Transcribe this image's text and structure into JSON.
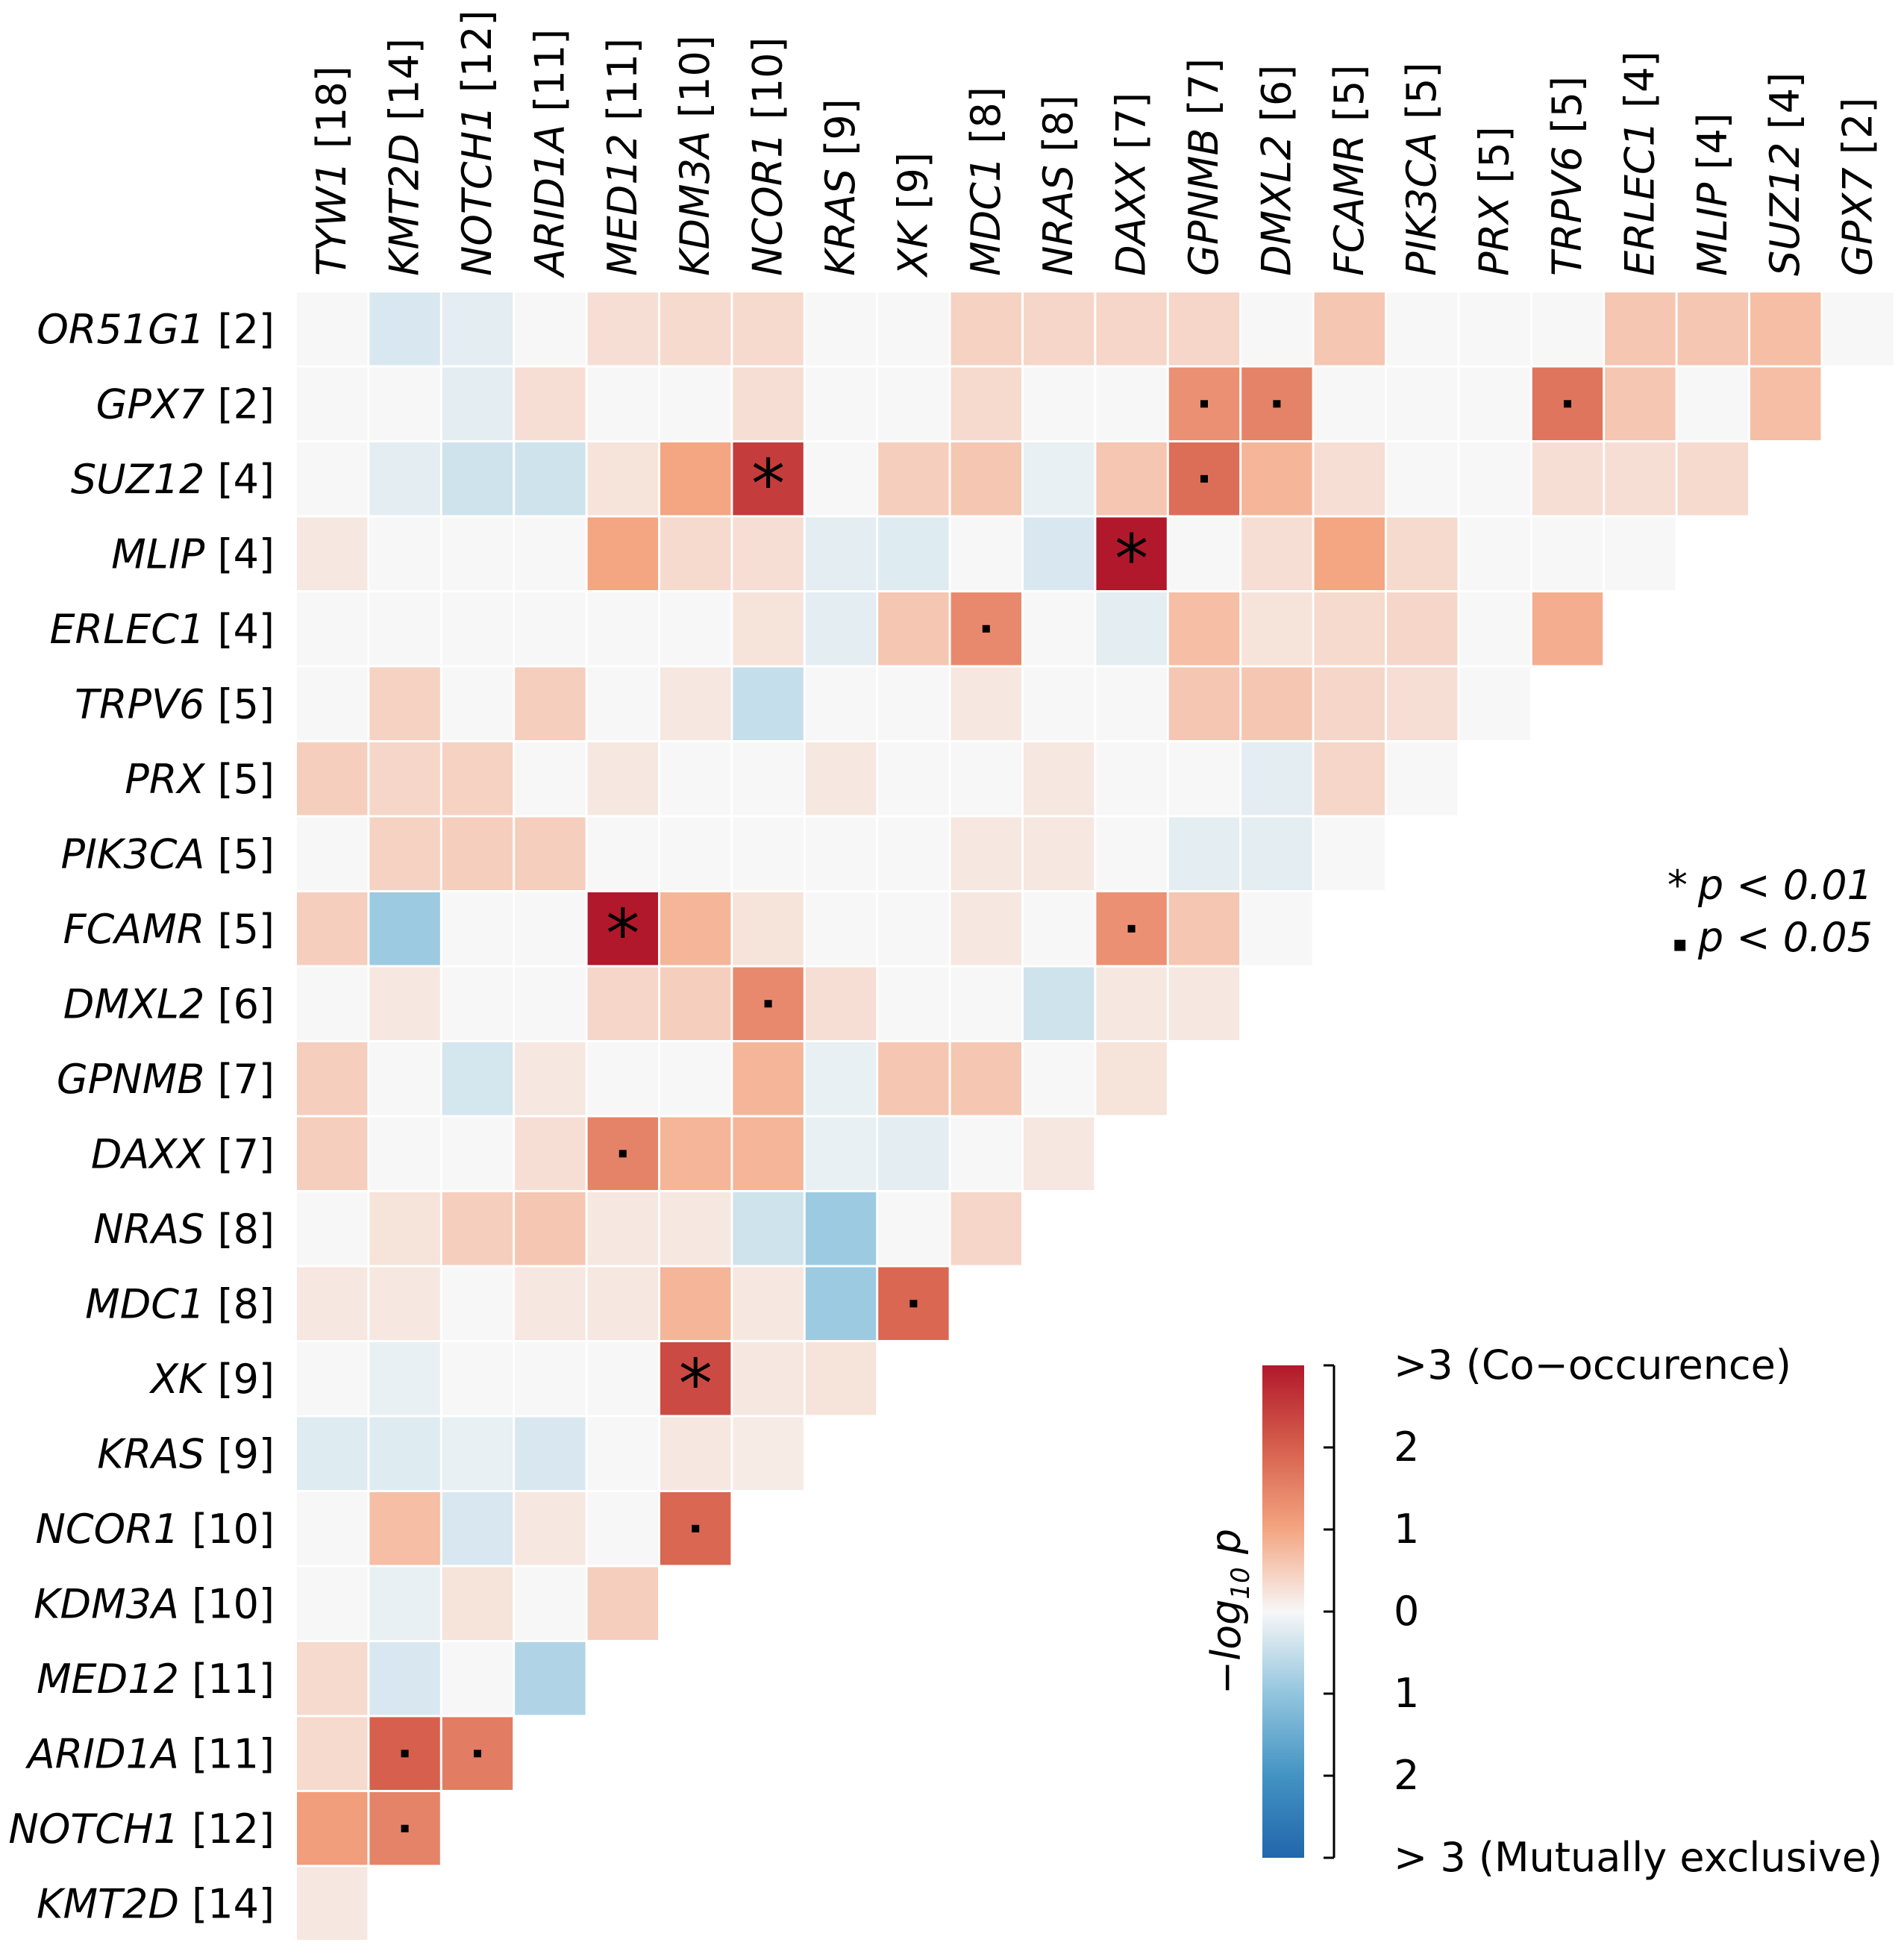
{
  "chart_data": {
    "type": "heatmap",
    "title": "",
    "genes_columns": [
      {
        "name": "TYW1",
        "count": "[18]"
      },
      {
        "name": "KMT2D",
        "count": "[14]"
      },
      {
        "name": "NOTCH1",
        "count": "[12]"
      },
      {
        "name": "ARID1A",
        "count": "[11]"
      },
      {
        "name": "MED12",
        "count": "[11]"
      },
      {
        "name": "KDM3A",
        "count": "[10]"
      },
      {
        "name": "NCOR1",
        "count": "[10]"
      },
      {
        "name": "KRAS",
        "count": "[9]"
      },
      {
        "name": "XK",
        "count": "[9]"
      },
      {
        "name": "MDC1",
        "count": "[8]"
      },
      {
        "name": "NRAS",
        "count": "[8]"
      },
      {
        "name": "DAXX",
        "count": "[7]"
      },
      {
        "name": "GPNMB",
        "count": "[7]"
      },
      {
        "name": "DMXL2",
        "count": "[6]"
      },
      {
        "name": "FCAMR",
        "count": "[5]"
      },
      {
        "name": "PIK3CA",
        "count": "[5]"
      },
      {
        "name": "PRX",
        "count": "[5]"
      },
      {
        "name": "TRPV6",
        "count": "[5]"
      },
      {
        "name": "ERLEC1",
        "count": "[4]"
      },
      {
        "name": "MLIP",
        "count": "[4]"
      },
      {
        "name": "SUZ12",
        "count": "[4]"
      },
      {
        "name": "GPX7",
        "count": "[2]"
      }
    ],
    "genes_rows": [
      {
        "name": "OR51G1",
        "count": "[2]"
      },
      {
        "name": "GPX7",
        "count": "[2]"
      },
      {
        "name": "SUZ12",
        "count": "[4]"
      },
      {
        "name": "MLIP",
        "count": "[4]"
      },
      {
        "name": "ERLEC1",
        "count": "[4]"
      },
      {
        "name": "TRPV6",
        "count": "[5]"
      },
      {
        "name": "PRX",
        "count": "[5]"
      },
      {
        "name": "PIK3CA",
        "count": "[5]"
      },
      {
        "name": "FCAMR",
        "count": "[5]"
      },
      {
        "name": "DMXL2",
        "count": "[6]"
      },
      {
        "name": "GPNMB",
        "count": "[7]"
      },
      {
        "name": "DAXX",
        "count": "[7]"
      },
      {
        "name": "NRAS",
        "count": "[8]"
      },
      {
        "name": "MDC1",
        "count": "[8]"
      },
      {
        "name": "XK",
        "count": "[9]"
      },
      {
        "name": "KRAS",
        "count": "[9]"
      },
      {
        "name": "NCOR1",
        "count": "[10]"
      },
      {
        "name": "KDM3A",
        "count": "[10]"
      },
      {
        "name": "MED12",
        "count": "[11]"
      },
      {
        "name": "ARID1A",
        "count": "[11]"
      },
      {
        "name": "NOTCH1",
        "count": "[12]"
      },
      {
        "name": "KMT2D",
        "count": "[14]"
      }
    ],
    "value_description": "signed -log10 p; positive = co-occurrence, negative = mutual exclusivity",
    "values": [
      [
        0,
        -0.3,
        -0.2,
        0,
        0.3,
        0.35,
        0.35,
        0,
        0,
        0.45,
        0.4,
        0.4,
        0.4,
        0,
        0.6,
        0,
        0,
        0,
        0.6,
        0.6,
        0.7,
        0
      ],
      [
        0,
        0,
        -0.2,
        0.3,
        0,
        0,
        0.3,
        0,
        0,
        0.35,
        0,
        0,
        1.3,
        1.5,
        0,
        0,
        0,
        1.7,
        0.6,
        0,
        0.7
      ],
      [
        0,
        -0.2,
        -0.4,
        -0.4,
        0.25,
        1.0,
        2.5,
        0,
        0.5,
        0.6,
        -0.15,
        0.6,
        1.8,
        0.8,
        0.3,
        0,
        0,
        0.3,
        0.3,
        0.35
      ],
      [
        0.2,
        0,
        0,
        0,
        1.0,
        0.35,
        0.3,
        -0.2,
        -0.25,
        0,
        -0.3,
        3.0,
        0,
        0.3,
        1.0,
        0.35,
        0,
        0,
        0
      ],
      [
        0,
        0,
        0,
        0,
        0,
        0,
        0.25,
        -0.2,
        0.6,
        1.4,
        0,
        -0.2,
        0.7,
        0.25,
        0.35,
        0.4,
        0,
        0.9
      ],
      [
        0,
        0.45,
        0,
        0.5,
        0,
        0.2,
        -0.5,
        0,
        0,
        0.2,
        0,
        0,
        0.6,
        0.6,
        0.4,
        0.3,
        0
      ],
      [
        0.5,
        0.4,
        0.45,
        0,
        0.2,
        0,
        0,
        0.2,
        0,
        0,
        0.2,
        0,
        0,
        -0.2,
        0.4,
        0
      ],
      [
        0,
        0.45,
        0.5,
        0.5,
        0,
        0,
        0,
        0,
        0,
        0.2,
        0.2,
        0,
        -0.2,
        -0.2,
        0
      ],
      [
        0.5,
        -0.9,
        0,
        0,
        3.0,
        0.8,
        0.25,
        0,
        0,
        0.2,
        0,
        1.3,
        0.6,
        0
      ],
      [
        0,
        0.2,
        0,
        0,
        0.4,
        0.5,
        1.4,
        0.3,
        0,
        0,
        -0.4,
        0.2,
        0.2
      ],
      [
        0.5,
        0,
        -0.35,
        0.2,
        0,
        0,
        0.8,
        -0.15,
        0.6,
        0.6,
        0,
        0.25
      ],
      [
        0.5,
        0,
        0,
        0.3,
        1.5,
        0.8,
        0.8,
        -0.15,
        -0.2,
        0,
        0.2
      ],
      [
        0,
        0.25,
        0.5,
        0.6,
        0.2,
        0.2,
        -0.4,
        -0.9,
        0,
        0.4
      ],
      [
        0.2,
        0.2,
        0,
        0.2,
        0.2,
        0.8,
        0.2,
        -0.9,
        1.9
      ],
      [
        0,
        -0.15,
        0,
        0,
        0,
        2.3,
        0.2,
        0.25
      ],
      [
        -0.25,
        -0.25,
        -0.15,
        -0.3,
        0,
        0.2,
        0.15
      ],
      [
        0,
        0.7,
        -0.3,
        0.2,
        0,
        1.9
      ],
      [
        0,
        -0.15,
        0.25,
        0,
        0.5
      ],
      [
        0.35,
        -0.3,
        0,
        -0.7
      ],
      [
        0.35,
        2.0,
        1.6
      ],
      [
        1.1,
        1.5
      ],
      [
        0.2
      ]
    ],
    "significance": [
      {
        "row": 1,
        "col": 12,
        "mark": "dot"
      },
      {
        "row": 1,
        "col": 13,
        "mark": "dot"
      },
      {
        "row": 1,
        "col": 17,
        "mark": "dot"
      },
      {
        "row": 2,
        "col": 6,
        "mark": "star"
      },
      {
        "row": 2,
        "col": 12,
        "mark": "dot"
      },
      {
        "row": 3,
        "col": 11,
        "mark": "star"
      },
      {
        "row": 4,
        "col": 9,
        "mark": "dot"
      },
      {
        "row": 8,
        "col": 4,
        "mark": "star"
      },
      {
        "row": 8,
        "col": 11,
        "mark": "dot"
      },
      {
        "row": 9,
        "col": 6,
        "mark": "dot"
      },
      {
        "row": 11,
        "col": 4,
        "mark": "dot"
      },
      {
        "row": 13,
        "col": 8,
        "mark": "dot"
      },
      {
        "row": 14,
        "col": 5,
        "mark": "star"
      },
      {
        "row": 16,
        "col": 5,
        "mark": "dot"
      },
      {
        "row": 19,
        "col": 1,
        "mark": "dot"
      },
      {
        "row": 19,
        "col": 2,
        "mark": "dot"
      },
      {
        "row": 20,
        "col": 1,
        "mark": "dot"
      }
    ],
    "legend": {
      "star_label": "p < 0.01",
      "dot_label": "p < 0.05",
      "star_symbol": "*",
      "dot_symbol": "▪"
    },
    "colorbar": {
      "title": "−log₁₀ p",
      "title_main": "−log",
      "title_sub": "10",
      "title_end": " p",
      "range": [
        -3,
        3
      ],
      "tick_values": [
        3,
        2,
        1,
        0,
        -1,
        -2,
        -3
      ],
      "tick_labels": [
        ">3 (Co−occurence)",
        "2",
        "1",
        "0",
        "1",
        "2",
        "> 3 (Mutually exclusive)"
      ],
      "colors": {
        "pos_max": "#b2182b",
        "pos_mid": "#f4a582",
        "zero": "#f7f7f7",
        "neg_mid": "#92c5de",
        "neg_max": "#2166ac"
      }
    }
  }
}
